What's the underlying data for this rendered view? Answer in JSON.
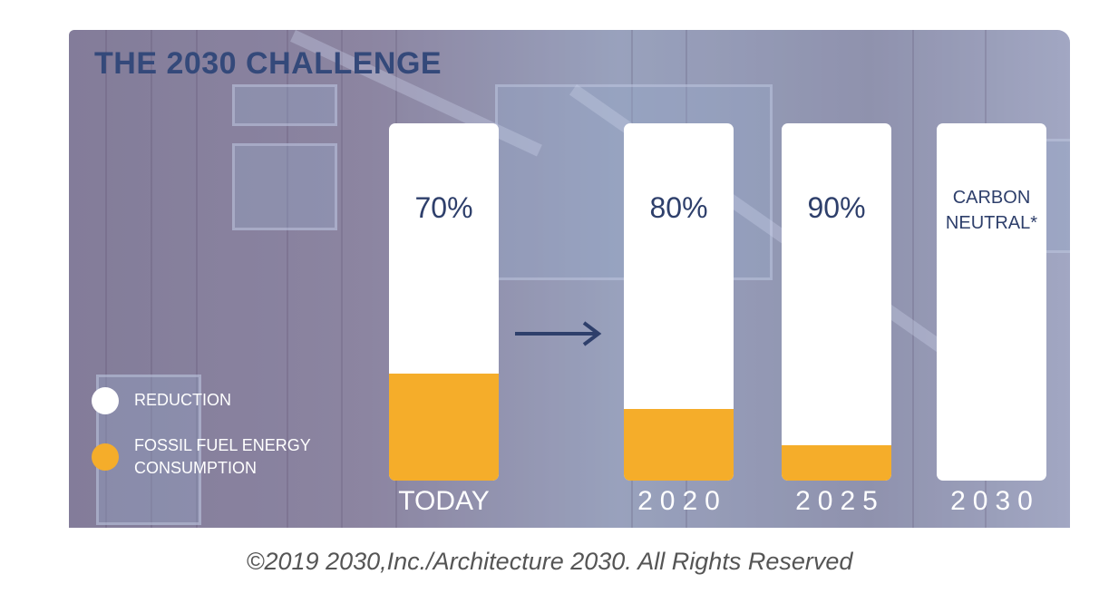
{
  "chart_data": {
    "type": "bar",
    "title": "THE 2030 CHALLENGE",
    "categories": [
      "TODAY",
      "2020",
      "2025",
      "2030"
    ],
    "series": [
      {
        "name": "REDUCTION",
        "values": [
          70,
          80,
          90,
          100
        ]
      },
      {
        "name": "FOSSIL FUEL ENERGY CONSUMPTION",
        "values": [
          30,
          20,
          10,
          0
        ]
      }
    ],
    "bar_labels": [
      "70%",
      "80%",
      "90%",
      "CARBON NEUTRAL*"
    ],
    "ylim": [
      0,
      100
    ],
    "colors": {
      "reduction": "#ffffff",
      "fossil": "#f5ad2a"
    }
  },
  "legend": {
    "reduction": "REDUCTION",
    "fossil_line1": "FOSSIL FUEL ENERGY",
    "fossil_line2": "CONSUMPTION"
  },
  "credit": "©2019  2030,Inc./Architecture 2030.  All Rights Reserved"
}
